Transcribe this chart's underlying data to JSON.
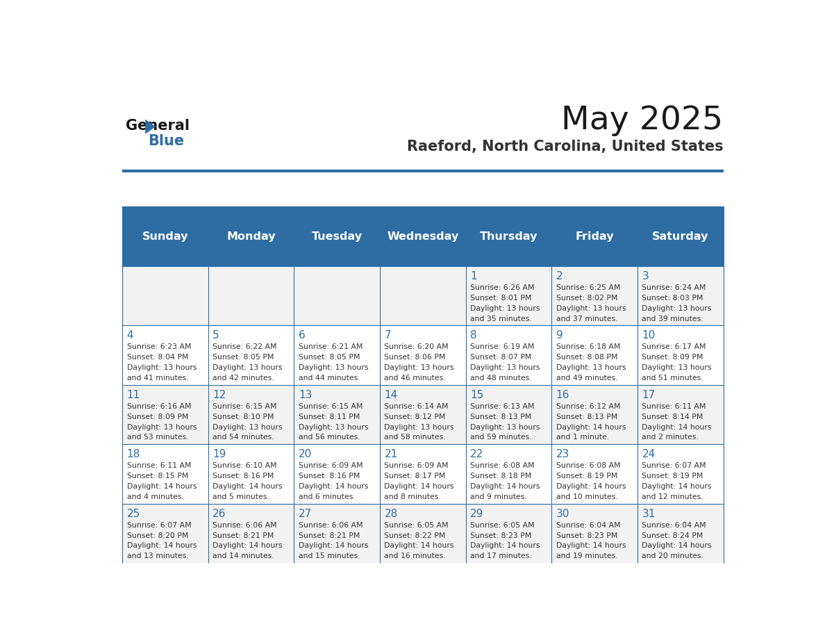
{
  "title": "May 2025",
  "subtitle": "Raeford, North Carolina, United States",
  "header_bg": "#2E6DA4",
  "header_text_color": "#FFFFFF",
  "day_names": [
    "Sunday",
    "Monday",
    "Tuesday",
    "Wednesday",
    "Thursday",
    "Friday",
    "Saturday"
  ],
  "row_bg_even": "#F2F2F2",
  "row_bg_odd": "#FFFFFF",
  "cell_border_color": "#2E6DA4",
  "day_num_color": "#2E6DA4",
  "text_color": "#333333",
  "logo_text1": "General",
  "logo_text2": "Blue",
  "logo_color1": "#1a1a1a",
  "logo_color2": "#2E6DA4",
  "days": [
    {
      "date": 1,
      "col": 4,
      "row": 0,
      "sunrise": "6:26 AM",
      "sunset": "8:01 PM",
      "daylight": "13 hours and 35 minutes."
    },
    {
      "date": 2,
      "col": 5,
      "row": 0,
      "sunrise": "6:25 AM",
      "sunset": "8:02 PM",
      "daylight": "13 hours and 37 minutes."
    },
    {
      "date": 3,
      "col": 6,
      "row": 0,
      "sunrise": "6:24 AM",
      "sunset": "8:03 PM",
      "daylight": "13 hours and 39 minutes."
    },
    {
      "date": 4,
      "col": 0,
      "row": 1,
      "sunrise": "6:23 AM",
      "sunset": "8:04 PM",
      "daylight": "13 hours and 41 minutes."
    },
    {
      "date": 5,
      "col": 1,
      "row": 1,
      "sunrise": "6:22 AM",
      "sunset": "8:05 PM",
      "daylight": "13 hours and 42 minutes."
    },
    {
      "date": 6,
      "col": 2,
      "row": 1,
      "sunrise": "6:21 AM",
      "sunset": "8:05 PM",
      "daylight": "13 hours and 44 minutes."
    },
    {
      "date": 7,
      "col": 3,
      "row": 1,
      "sunrise": "6:20 AM",
      "sunset": "8:06 PM",
      "daylight": "13 hours and 46 minutes."
    },
    {
      "date": 8,
      "col": 4,
      "row": 1,
      "sunrise": "6:19 AM",
      "sunset": "8:07 PM",
      "daylight": "13 hours and 48 minutes."
    },
    {
      "date": 9,
      "col": 5,
      "row": 1,
      "sunrise": "6:18 AM",
      "sunset": "8:08 PM",
      "daylight": "13 hours and 49 minutes."
    },
    {
      "date": 10,
      "col": 6,
      "row": 1,
      "sunrise": "6:17 AM",
      "sunset": "8:09 PM",
      "daylight": "13 hours and 51 minutes."
    },
    {
      "date": 11,
      "col": 0,
      "row": 2,
      "sunrise": "6:16 AM",
      "sunset": "8:09 PM",
      "daylight": "13 hours and 53 minutes."
    },
    {
      "date": 12,
      "col": 1,
      "row": 2,
      "sunrise": "6:15 AM",
      "sunset": "8:10 PM",
      "daylight": "13 hours and 54 minutes."
    },
    {
      "date": 13,
      "col": 2,
      "row": 2,
      "sunrise": "6:15 AM",
      "sunset": "8:11 PM",
      "daylight": "13 hours and 56 minutes."
    },
    {
      "date": 14,
      "col": 3,
      "row": 2,
      "sunrise": "6:14 AM",
      "sunset": "8:12 PM",
      "daylight": "13 hours and 58 minutes."
    },
    {
      "date": 15,
      "col": 4,
      "row": 2,
      "sunrise": "6:13 AM",
      "sunset": "8:13 PM",
      "daylight": "13 hours and 59 minutes."
    },
    {
      "date": 16,
      "col": 5,
      "row": 2,
      "sunrise": "6:12 AM",
      "sunset": "8:13 PM",
      "daylight": "14 hours and 1 minute."
    },
    {
      "date": 17,
      "col": 6,
      "row": 2,
      "sunrise": "6:11 AM",
      "sunset": "8:14 PM",
      "daylight": "14 hours and 2 minutes."
    },
    {
      "date": 18,
      "col": 0,
      "row": 3,
      "sunrise": "6:11 AM",
      "sunset": "8:15 PM",
      "daylight": "14 hours and 4 minutes."
    },
    {
      "date": 19,
      "col": 1,
      "row": 3,
      "sunrise": "6:10 AM",
      "sunset": "8:16 PM",
      "daylight": "14 hours and 5 minutes."
    },
    {
      "date": 20,
      "col": 2,
      "row": 3,
      "sunrise": "6:09 AM",
      "sunset": "8:16 PM",
      "daylight": "14 hours and 6 minutes."
    },
    {
      "date": 21,
      "col": 3,
      "row": 3,
      "sunrise": "6:09 AM",
      "sunset": "8:17 PM",
      "daylight": "14 hours and 8 minutes."
    },
    {
      "date": 22,
      "col": 4,
      "row": 3,
      "sunrise": "6:08 AM",
      "sunset": "8:18 PM",
      "daylight": "14 hours and 9 minutes."
    },
    {
      "date": 23,
      "col": 5,
      "row": 3,
      "sunrise": "6:08 AM",
      "sunset": "8:19 PM",
      "daylight": "14 hours and 10 minutes."
    },
    {
      "date": 24,
      "col": 6,
      "row": 3,
      "sunrise": "6:07 AM",
      "sunset": "8:19 PM",
      "daylight": "14 hours and 12 minutes."
    },
    {
      "date": 25,
      "col": 0,
      "row": 4,
      "sunrise": "6:07 AM",
      "sunset": "8:20 PM",
      "daylight": "14 hours and 13 minutes."
    },
    {
      "date": 26,
      "col": 1,
      "row": 4,
      "sunrise": "6:06 AM",
      "sunset": "8:21 PM",
      "daylight": "14 hours and 14 minutes."
    },
    {
      "date": 27,
      "col": 2,
      "row": 4,
      "sunrise": "6:06 AM",
      "sunset": "8:21 PM",
      "daylight": "14 hours and 15 minutes."
    },
    {
      "date": 28,
      "col": 3,
      "row": 4,
      "sunrise": "6:05 AM",
      "sunset": "8:22 PM",
      "daylight": "14 hours and 16 minutes."
    },
    {
      "date": 29,
      "col": 4,
      "row": 4,
      "sunrise": "6:05 AM",
      "sunset": "8:23 PM",
      "daylight": "14 hours and 17 minutes."
    },
    {
      "date": 30,
      "col": 5,
      "row": 4,
      "sunrise": "6:04 AM",
      "sunset": "8:23 PM",
      "daylight": "14 hours and 19 minutes."
    },
    {
      "date": 31,
      "col": 6,
      "row": 4,
      "sunrise": "6:04 AM",
      "sunset": "8:24 PM",
      "daylight": "14 hours and 20 minutes."
    }
  ]
}
